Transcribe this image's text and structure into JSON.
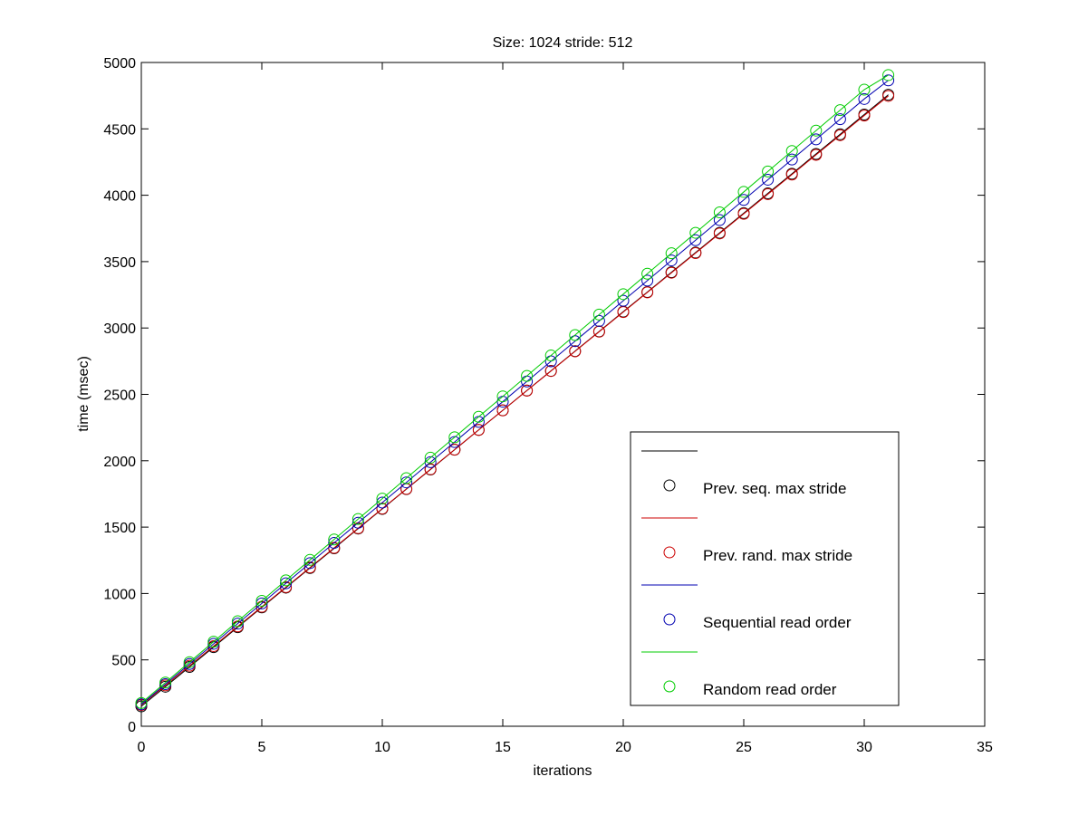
{
  "chart_data": {
    "type": "line",
    "title": "Size: 1024 stride: 512",
    "xlabel": "iterations",
    "ylabel": "time (msec)",
    "xlim": [
      0,
      35
    ],
    "ylim": [
      0,
      5000
    ],
    "xticks": [
      0,
      5,
      10,
      15,
      20,
      25,
      30,
      35
    ],
    "yticks": [
      0,
      500,
      1000,
      1500,
      2000,
      2500,
      3000,
      3500,
      4000,
      4500,
      5000
    ],
    "grid": false,
    "legend_position": "bottom-right",
    "x": [
      0,
      1,
      2,
      3,
      4,
      5,
      6,
      7,
      8,
      9,
      10,
      11,
      12,
      13,
      14,
      15,
      16,
      17,
      18,
      19,
      20,
      21,
      22,
      23,
      24,
      25,
      26,
      27,
      28,
      29,
      30,
      31
    ],
    "series": [
      {
        "name": "Prev. seq. max stride",
        "color": "#000000",
        "marker": "circle",
        "values": [
          150,
          298,
          447,
          596,
          746,
          895,
          1044,
          1192,
          1340,
          1489,
          1637,
          1786,
          1934,
          2083,
          2232,
          2380,
          2529,
          2677,
          2826,
          2974,
          3123,
          3271,
          3420,
          3568,
          3717,
          3865,
          4014,
          4162,
          4311,
          4459,
          4608,
          4757
        ]
      },
      {
        "name": "Prev. rand. max stride",
        "color": "#cc0000",
        "marker": "circle",
        "values": [
          160,
          308,
          456,
          604,
          752,
          900,
          1048,
          1196,
          1344,
          1492,
          1640,
          1788,
          1936,
          2084,
          2232,
          2380,
          2528,
          2676,
          2824,
          2972,
          3120,
          3268,
          3416,
          3564,
          3712,
          3860,
          4008,
          4156,
          4304,
          4452,
          4600,
          4748
        ]
      },
      {
        "name": "Sequential read order",
        "color": "#0000b0",
        "marker": "circle",
        "values": [
          165,
          317,
          469,
          621,
          773,
          925,
          1077,
          1229,
          1381,
          1533,
          1685,
          1837,
          1989,
          2141,
          2293,
          2445,
          2597,
          2749,
          2901,
          3053,
          3205,
          3357,
          3509,
          3661,
          3813,
          3965,
          4117,
          4269,
          4421,
          4573,
          4725,
          4865
        ]
      },
      {
        "name": "Random read order",
        "color": "#00cc00",
        "marker": "circle",
        "values": [
          175,
          329,
          483,
          637,
          791,
          945,
          1099,
          1253,
          1407,
          1561,
          1715,
          1869,
          2023,
          2177,
          2331,
          2485,
          2639,
          2793,
          2947,
          3101,
          3255,
          3409,
          3563,
          3717,
          3871,
          4025,
          4179,
          4333,
          4487,
          4641,
          4795,
          4905
        ]
      }
    ]
  }
}
